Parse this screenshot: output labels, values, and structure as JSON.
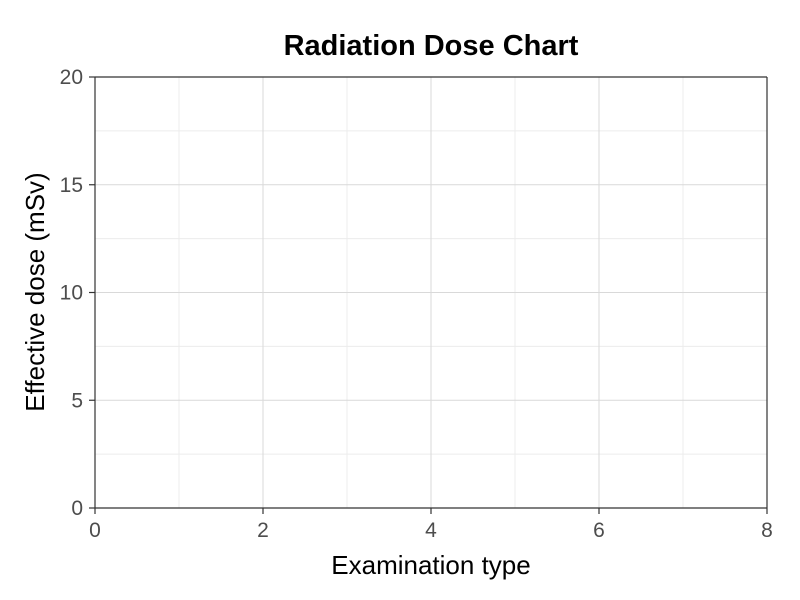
{
  "chart_data": {
    "type": "scatter",
    "title": "Radiation Dose Chart",
    "xlabel": "Examination type",
    "ylabel": "Effective dose (mSv)",
    "xlim": [
      0,
      8
    ],
    "ylim": [
      0,
      20
    ],
    "x_ticks": [
      0,
      2,
      4,
      6,
      8
    ],
    "y_ticks": [
      0,
      5,
      10,
      15,
      20
    ],
    "x_minor": [
      1,
      3,
      5,
      7
    ],
    "y_minor": [
      2.5,
      7.5,
      12.5,
      17.5
    ],
    "grid": true,
    "legend": "none",
    "series": [],
    "colors": {
      "major_grid": "#d9d9d9",
      "minor_grid": "#ececec",
      "axis": "#333333",
      "tick_text": "#4d4d4d",
      "text": "#000000"
    }
  }
}
